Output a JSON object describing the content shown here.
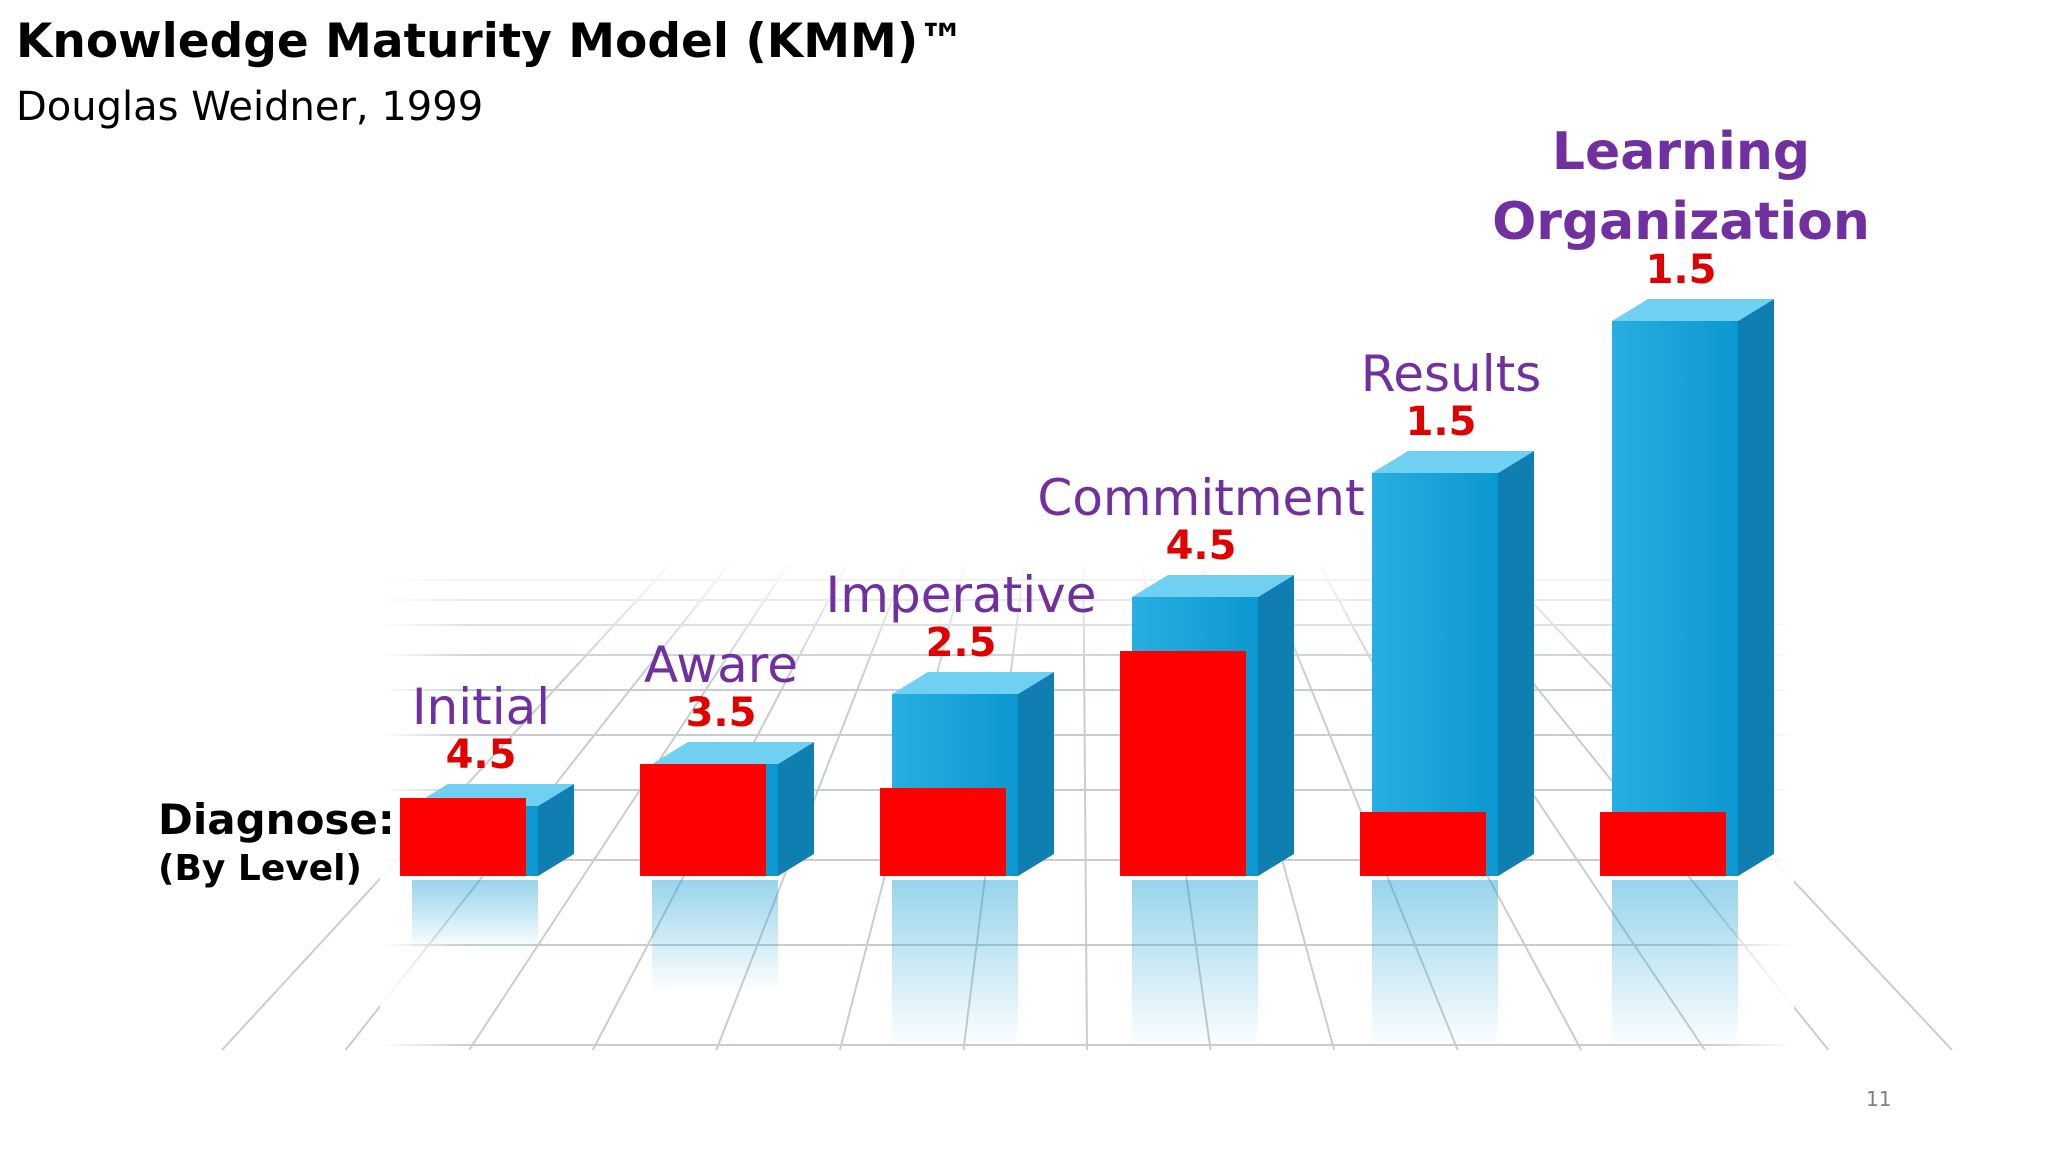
{
  "slide": {
    "title": "Knowledge Maturity Model (KMM)™",
    "subtitle": "Douglas Weidner, 1999",
    "page_number": "11"
  },
  "chart_data": {
    "type": "bar",
    "style": "3d-bars-on-reflective-grid",
    "y_axis_label_lines": [
      "Diagnose:",
      "(By Level)"
    ],
    "categories": [
      [
        "Initial"
      ],
      [
        "Aware"
      ],
      [
        "Imperative"
      ],
      [
        "Commitment"
      ],
      [
        "Results"
      ],
      [
        "Learning",
        "Organization"
      ]
    ],
    "value_labels": [
      "4.5",
      "3.5",
      "2.5",
      "4.5",
      "1.5",
      "1.5"
    ],
    "series": [
      {
        "values": [
          1,
          2,
          3,
          4,
          5,
          6
        ],
        "color": "#1a9fd4"
      },
      {
        "values": [
          4.5,
          3.5,
          2.5,
          4.5,
          1.5,
          1.5
        ],
        "color": "#ff0000"
      }
    ],
    "colors": {
      "category_text": "#7030a0",
      "value_text": "#e00000",
      "axis_text": "#000000",
      "bar_front": "#1a9fd4",
      "bar_top": "#6fd0f2",
      "bar_side": "#0e7fb0",
      "diagnose_fill": "#ff0000"
    }
  }
}
